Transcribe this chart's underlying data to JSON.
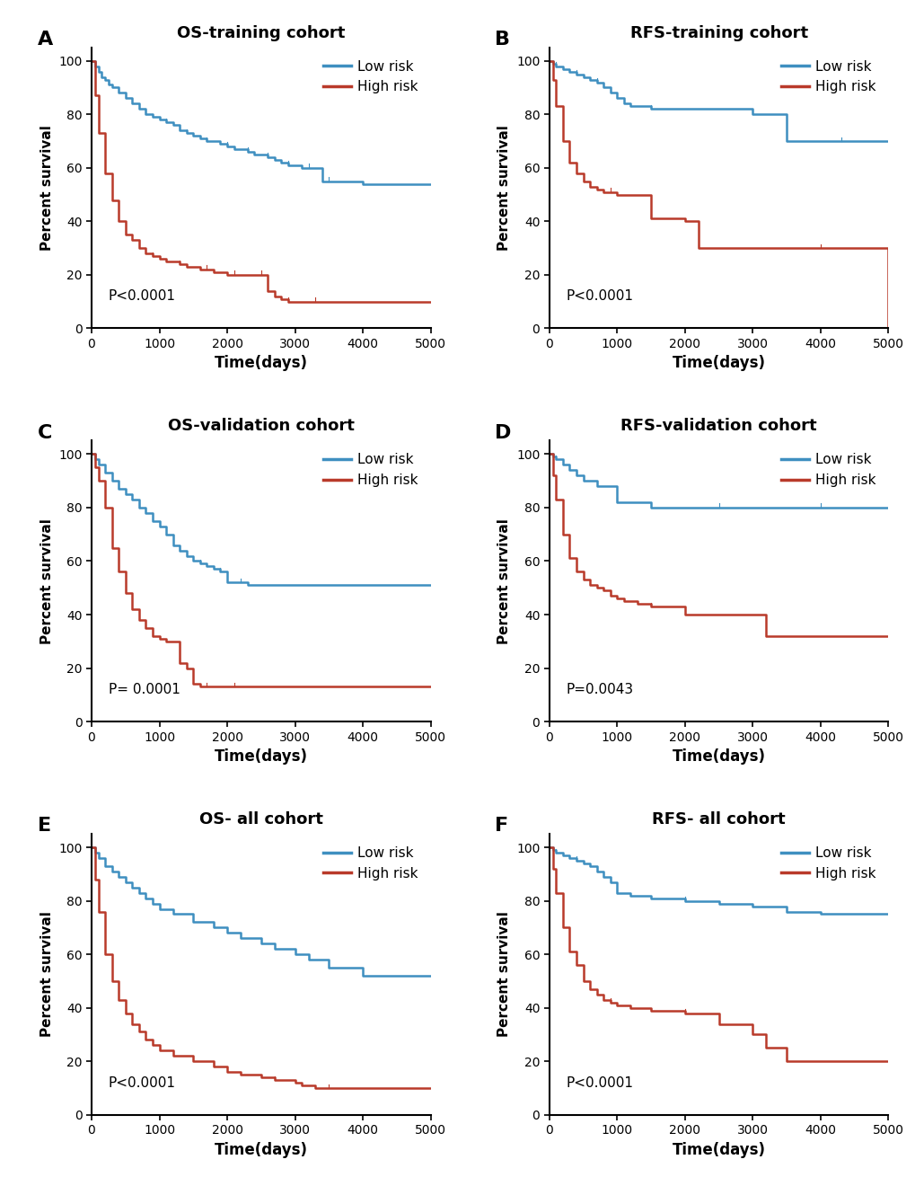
{
  "panels": [
    {
      "label": "A",
      "title": "OS-training cohort",
      "pvalue": "P<0.0001",
      "low_risk": {
        "times": [
          0,
          50,
          100,
          150,
          200,
          250,
          300,
          400,
          500,
          600,
          700,
          800,
          900,
          1000,
          1100,
          1200,
          1300,
          1400,
          1500,
          1600,
          1700,
          1800,
          1900,
          2000,
          2100,
          2200,
          2300,
          2400,
          2500,
          2600,
          2700,
          2800,
          2900,
          3000,
          3100,
          3200,
          3300,
          3400,
          3500,
          4000,
          5000
        ],
        "surv": [
          1.0,
          0.98,
          0.96,
          0.94,
          0.93,
          0.91,
          0.9,
          0.88,
          0.86,
          0.84,
          0.82,
          0.8,
          0.79,
          0.78,
          0.77,
          0.76,
          0.74,
          0.73,
          0.72,
          0.71,
          0.7,
          0.7,
          0.69,
          0.68,
          0.67,
          0.67,
          0.66,
          0.65,
          0.65,
          0.64,
          0.63,
          0.62,
          0.61,
          0.61,
          0.6,
          0.6,
          0.6,
          0.55,
          0.55,
          0.54,
          0.54
        ]
      },
      "high_risk": {
        "times": [
          0,
          50,
          100,
          200,
          300,
          400,
          500,
          600,
          700,
          800,
          900,
          1000,
          1100,
          1200,
          1300,
          1400,
          1500,
          1600,
          1700,
          1800,
          1900,
          2000,
          2100,
          2200,
          2300,
          2400,
          2500,
          2600,
          2700,
          2800,
          2900,
          3000,
          3100,
          3200,
          3300,
          3400,
          5000
        ],
        "surv": [
          1.0,
          0.87,
          0.73,
          0.58,
          0.48,
          0.4,
          0.35,
          0.33,
          0.3,
          0.28,
          0.27,
          0.26,
          0.25,
          0.25,
          0.24,
          0.23,
          0.23,
          0.22,
          0.22,
          0.21,
          0.21,
          0.2,
          0.2,
          0.2,
          0.2,
          0.2,
          0.2,
          0.14,
          0.12,
          0.11,
          0.1,
          0.1,
          0.1,
          0.1,
          0.1,
          0.1,
          0.1
        ]
      }
    },
    {
      "label": "B",
      "title": "RFS-training cohort",
      "pvalue": "P<0.0001",
      "low_risk": {
        "times": [
          0,
          50,
          100,
          200,
          300,
          400,
          500,
          600,
          700,
          800,
          900,
          1000,
          1100,
          1200,
          1500,
          2000,
          2500,
          3000,
          3500,
          4000,
          4300,
          5000
        ],
        "surv": [
          1.0,
          0.99,
          0.98,
          0.97,
          0.96,
          0.95,
          0.94,
          0.93,
          0.92,
          0.9,
          0.88,
          0.86,
          0.84,
          0.83,
          0.82,
          0.82,
          0.82,
          0.8,
          0.7,
          0.7,
          0.7,
          0.7
        ]
      },
      "high_risk": {
        "times": [
          0,
          50,
          100,
          200,
          300,
          400,
          500,
          600,
          700,
          800,
          900,
          1000,
          1100,
          1200,
          1500,
          1700,
          2000,
          2100,
          2200,
          2500,
          2600,
          3000,
          4000,
          4300,
          5000
        ],
        "surv": [
          1.0,
          0.93,
          0.83,
          0.7,
          0.62,
          0.58,
          0.55,
          0.53,
          0.52,
          0.51,
          0.51,
          0.5,
          0.5,
          0.5,
          0.41,
          0.41,
          0.4,
          0.4,
          0.3,
          0.3,
          0.3,
          0.3,
          0.3,
          0.3,
          0.0
        ]
      }
    },
    {
      "label": "C",
      "title": "OS-validation cohort",
      "pvalue": "P= 0.0001",
      "low_risk": {
        "times": [
          0,
          50,
          100,
          200,
          300,
          400,
          500,
          600,
          700,
          800,
          900,
          1000,
          1100,
          1200,
          1300,
          1400,
          1500,
          1600,
          1700,
          1800,
          1900,
          2000,
          2100,
          2200,
          2300,
          5000
        ],
        "surv": [
          1.0,
          0.98,
          0.96,
          0.93,
          0.9,
          0.87,
          0.85,
          0.83,
          0.8,
          0.78,
          0.75,
          0.73,
          0.7,
          0.66,
          0.64,
          0.62,
          0.6,
          0.59,
          0.58,
          0.57,
          0.56,
          0.52,
          0.52,
          0.52,
          0.51,
          0.51
        ]
      },
      "high_risk": {
        "times": [
          0,
          50,
          100,
          200,
          300,
          400,
          500,
          600,
          700,
          800,
          900,
          1000,
          1100,
          1200,
          1300,
          1400,
          1500,
          1600,
          1700,
          1800,
          1900,
          2000,
          2100,
          5000
        ],
        "surv": [
          1.0,
          0.95,
          0.9,
          0.8,
          0.65,
          0.56,
          0.48,
          0.42,
          0.38,
          0.35,
          0.32,
          0.31,
          0.3,
          0.3,
          0.22,
          0.2,
          0.14,
          0.13,
          0.13,
          0.13,
          0.13,
          0.13,
          0.13,
          0.13
        ]
      }
    },
    {
      "label": "D",
      "title": "RFS-validation cohort",
      "pvalue": "P=0.0043",
      "low_risk": {
        "times": [
          0,
          50,
          100,
          200,
          300,
          400,
          500,
          700,
          1000,
          1500,
          2000,
          2500,
          3000,
          3500,
          4000,
          5000
        ],
        "surv": [
          1.0,
          0.99,
          0.98,
          0.96,
          0.94,
          0.92,
          0.9,
          0.88,
          0.82,
          0.8,
          0.8,
          0.8,
          0.8,
          0.8,
          0.8,
          0.8
        ]
      },
      "high_risk": {
        "times": [
          0,
          50,
          100,
          200,
          300,
          400,
          500,
          600,
          700,
          800,
          900,
          1000,
          1100,
          1300,
          1500,
          2000,
          2500,
          3000,
          3200,
          3400,
          5000
        ],
        "surv": [
          1.0,
          0.92,
          0.83,
          0.7,
          0.61,
          0.56,
          0.53,
          0.51,
          0.5,
          0.49,
          0.47,
          0.46,
          0.45,
          0.44,
          0.43,
          0.4,
          0.4,
          0.4,
          0.32,
          0.32,
          0.32
        ]
      }
    },
    {
      "label": "E",
      "title": "OS- all cohort",
      "pvalue": "P<0.0001",
      "low_risk": {
        "times": [
          0,
          50,
          100,
          200,
          300,
          400,
          500,
          600,
          700,
          800,
          900,
          1000,
          1200,
          1500,
          1800,
          2000,
          2200,
          2500,
          2700,
          3000,
          3200,
          3500,
          4000,
          5000
        ],
        "surv": [
          1.0,
          0.98,
          0.96,
          0.93,
          0.91,
          0.89,
          0.87,
          0.85,
          0.83,
          0.81,
          0.79,
          0.77,
          0.75,
          0.72,
          0.7,
          0.68,
          0.66,
          0.64,
          0.62,
          0.6,
          0.58,
          0.55,
          0.52,
          0.52
        ]
      },
      "high_risk": {
        "times": [
          0,
          50,
          100,
          200,
          300,
          400,
          500,
          600,
          700,
          800,
          900,
          1000,
          1200,
          1500,
          1800,
          2000,
          2200,
          2500,
          2700,
          3000,
          3100,
          3300,
          3500,
          5000
        ],
        "surv": [
          1.0,
          0.88,
          0.76,
          0.6,
          0.5,
          0.43,
          0.38,
          0.34,
          0.31,
          0.28,
          0.26,
          0.24,
          0.22,
          0.2,
          0.18,
          0.16,
          0.15,
          0.14,
          0.13,
          0.12,
          0.11,
          0.1,
          0.1,
          0.1
        ]
      }
    },
    {
      "label": "F",
      "title": "RFS- all cohort",
      "pvalue": "P<0.0001",
      "low_risk": {
        "times": [
          0,
          50,
          100,
          200,
          300,
          400,
          500,
          600,
          700,
          800,
          900,
          1000,
          1200,
          1500,
          2000,
          2500,
          3000,
          3500,
          4000,
          4700,
          5000
        ],
        "surv": [
          1.0,
          0.99,
          0.98,
          0.97,
          0.96,
          0.95,
          0.94,
          0.93,
          0.91,
          0.89,
          0.87,
          0.83,
          0.82,
          0.81,
          0.8,
          0.79,
          0.78,
          0.76,
          0.75,
          0.75,
          0.75
        ]
      },
      "high_risk": {
        "times": [
          0,
          50,
          100,
          200,
          300,
          400,
          500,
          600,
          700,
          800,
          900,
          1000,
          1200,
          1500,
          2000,
          2500,
          3000,
          3200,
          3500,
          4700,
          5000
        ],
        "surv": [
          1.0,
          0.92,
          0.83,
          0.7,
          0.61,
          0.56,
          0.5,
          0.47,
          0.45,
          0.43,
          0.42,
          0.41,
          0.4,
          0.39,
          0.38,
          0.34,
          0.3,
          0.25,
          0.2,
          0.2,
          0.2
        ]
      }
    }
  ],
  "low_risk_color": "#3e8fc0",
  "high_risk_color": "#b93a2a",
  "bg_color": "#ffffff",
  "xlim": [
    0,
    5000
  ],
  "ylim": [
    0,
    105
  ],
  "xticks": [
    0,
    1000,
    2000,
    3000,
    4000,
    5000
  ],
  "yticks": [
    0,
    20,
    40,
    60,
    80,
    100
  ],
  "xlabel": "Time(days)",
  "ylabel": "Percent survival",
  "legend_low": "Low risk",
  "legend_high": "High risk",
  "line_width": 1.8
}
